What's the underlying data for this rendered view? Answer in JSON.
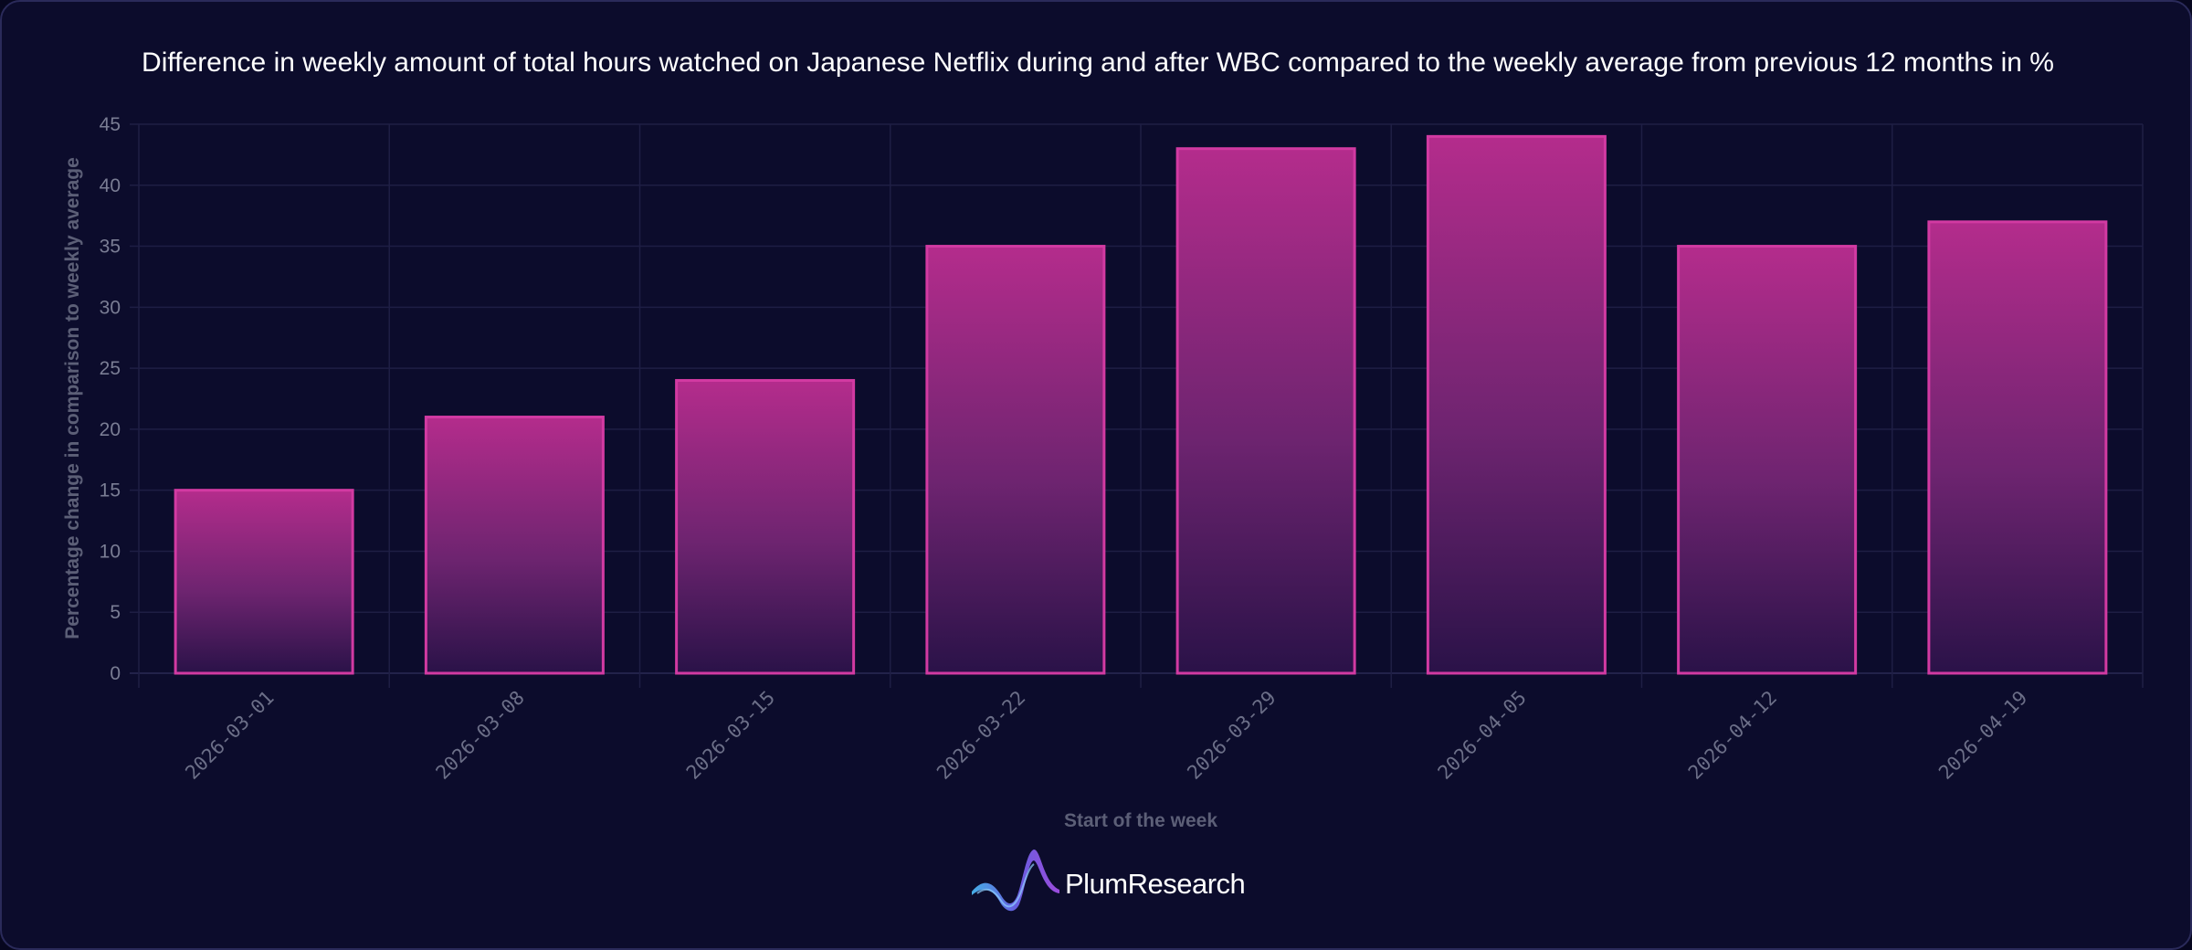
{
  "chart_data": {
    "type": "bar",
    "title": "Difference in weekly amount of total hours watched on Japanese Netflix during and after WBC compared to the weekly average from previous 12 months in %",
    "xlabel": "Start of the week",
    "ylabel": "Percentage change in comparison to weekly average",
    "categories": [
      "2026-03-01",
      "2026-03-08",
      "2026-03-15",
      "2026-03-22",
      "2026-03-29",
      "2026-04-05",
      "2026-04-12",
      "2026-04-19"
    ],
    "values": [
      15,
      21,
      24,
      35,
      43,
      44,
      35,
      37
    ],
    "ylim": [
      0,
      45
    ],
    "yticks": [
      "0",
      "5",
      "10",
      "15",
      "20",
      "25",
      "30",
      "35",
      "40",
      "45"
    ],
    "grid": true,
    "legend": "none"
  },
  "brand": {
    "name": "PlumResearch",
    "logo_icon": "wave-logo-icon"
  },
  "colors": {
    "background": "#0c0c2c",
    "bar_top": "#b42c8c",
    "bar_bottom": "#2a1248",
    "bar_border": "#d23aa2",
    "grid": "#1e1e44"
  }
}
